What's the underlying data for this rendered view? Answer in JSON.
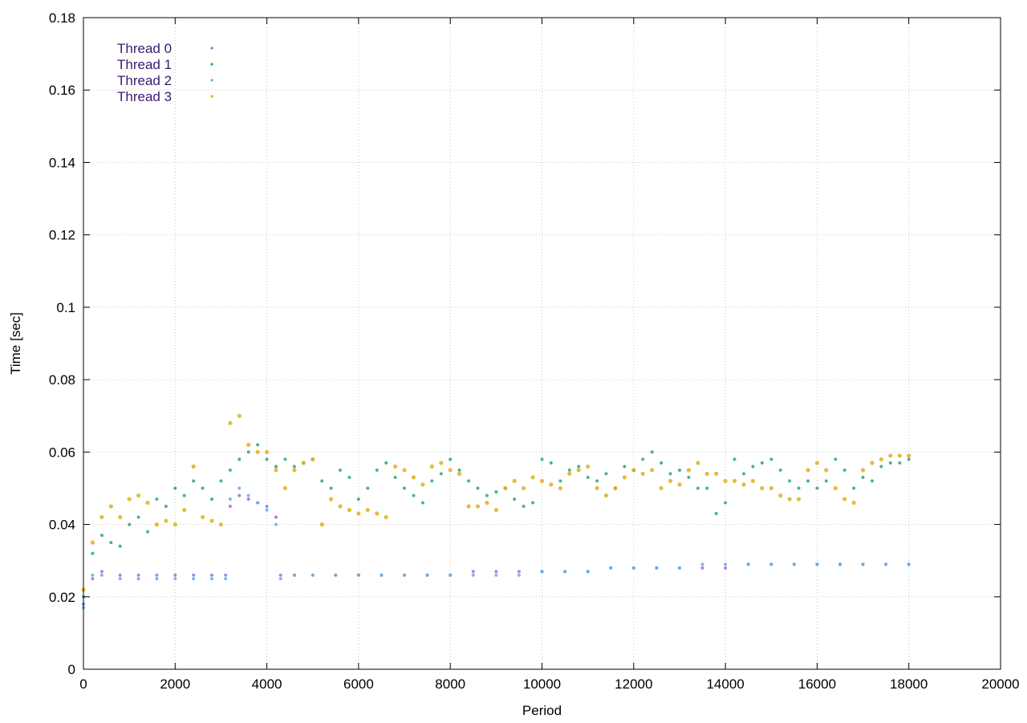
{
  "chart_data": {
    "type": "scatter",
    "xlabel": "Period",
    "ylabel": "Time [sec]",
    "xlim": [
      0,
      20000
    ],
    "ylim": [
      0,
      0.18
    ],
    "xticks": [
      0,
      2000,
      4000,
      6000,
      8000,
      10000,
      12000,
      14000,
      16000,
      18000,
      20000
    ],
    "yticks": [
      0,
      0.02,
      0.04,
      0.06,
      0.08,
      0.1,
      0.12,
      0.14,
      0.16,
      0.18
    ],
    "xtick_labels": [
      "0",
      "2000",
      "4000",
      "6000",
      "8000",
      "10000",
      "12000",
      "14000",
      "16000",
      "18000",
      "20000"
    ],
    "ytick_labels": [
      "0",
      "0.02",
      "0.04",
      "0.06",
      "0.08",
      "0.1",
      "0.12",
      "0.14",
      "0.16",
      "0.18"
    ],
    "grid": true,
    "legend_position": "top-left",
    "legend_text_color": "#3b1a6e",
    "series": [
      {
        "name": "Thread 0",
        "color": "#9b6fe0",
        "x": [
          0,
          200,
          400,
          800,
          1200,
          1600,
          2000,
          2400,
          2800,
          3100,
          3200,
          3400,
          3600,
          3800,
          4000,
          4200,
          4300,
          4600,
          5000,
          5500,
          6000,
          6500,
          7000,
          7500,
          8000,
          8500,
          9000,
          9500,
          10000,
          10500,
          11000,
          11500,
          12000,
          12500,
          13000,
          13500,
          14000,
          14500,
          15000,
          15500,
          16000,
          16500,
          17000,
          17500,
          18000
        ],
        "y": [
          0.018,
          0.025,
          0.027,
          0.026,
          0.026,
          0.026,
          0.026,
          0.026,
          0.026,
          0.026,
          0.045,
          0.048,
          0.047,
          0.046,
          0.045,
          0.042,
          0.026,
          0.026,
          0.026,
          0.026,
          0.026,
          0.026,
          0.026,
          0.026,
          0.026,
          0.027,
          0.027,
          0.027,
          0.027,
          0.027,
          0.027,
          0.028,
          0.028,
          0.028,
          0.028,
          0.028,
          0.028,
          0.029,
          0.029,
          0.029,
          0.029,
          0.029,
          0.029,
          0.029,
          0.029
        ]
      },
      {
        "name": "Thread 1",
        "color": "#2aa37f",
        "x": [
          0,
          200,
          400,
          600,
          800,
          1000,
          1200,
          1400,
          1600,
          1800,
          2000,
          2200,
          2400,
          2600,
          2800,
          3000,
          3200,
          3400,
          3600,
          3800,
          4000,
          4200,
          4400,
          4600,
          4800,
          5000,
          5200,
          5400,
          5600,
          5800,
          6000,
          6200,
          6400,
          6600,
          6800,
          7000,
          7200,
          7400,
          7600,
          7800,
          8000,
          8200,
          8400,
          8600,
          8800,
          9000,
          9200,
          9400,
          9600,
          9800,
          10000,
          10200,
          10400,
          10600,
          10800,
          11000,
          11200,
          11400,
          11600,
          11800,
          12000,
          12200,
          12400,
          12600,
          12800,
          13000,
          13200,
          13400,
          13600,
          13800,
          14000,
          14200,
          14400,
          14600,
          14800,
          15000,
          15200,
          15400,
          15600,
          15800,
          16000,
          16200,
          16400,
          16600,
          16800,
          17000,
          17200,
          17400,
          17600,
          17800,
          18000
        ],
        "y": [
          0.02,
          0.032,
          0.037,
          0.035,
          0.034,
          0.04,
          0.042,
          0.038,
          0.047,
          0.045,
          0.05,
          0.048,
          0.052,
          0.05,
          0.047,
          0.052,
          0.055,
          0.058,
          0.06,
          0.062,
          0.058,
          0.056,
          0.058,
          0.056,
          0.057,
          0.058,
          0.052,
          0.05,
          0.055,
          0.053,
          0.047,
          0.05,
          0.055,
          0.057,
          0.053,
          0.05,
          0.048,
          0.046,
          0.052,
          0.054,
          0.058,
          0.055,
          0.052,
          0.05,
          0.048,
          0.049,
          0.05,
          0.047,
          0.045,
          0.046,
          0.058,
          0.057,
          0.052,
          0.055,
          0.056,
          0.053,
          0.052,
          0.054,
          0.05,
          0.056,
          0.055,
          0.058,
          0.06,
          0.057,
          0.054,
          0.055,
          0.053,
          0.05,
          0.05,
          0.043,
          0.046,
          0.058,
          0.054,
          0.056,
          0.057,
          0.058,
          0.055,
          0.052,
          0.05,
          0.052,
          0.05,
          0.052,
          0.058,
          0.055,
          0.05,
          0.053,
          0.052,
          0.056,
          0.057,
          0.057,
          0.058
        ]
      },
      {
        "name": "Thread 2",
        "color": "#56b4e9",
        "x": [
          0,
          200,
          400,
          800,
          1200,
          1600,
          2000,
          2400,
          2800,
          3100,
          3200,
          3400,
          3600,
          3800,
          4000,
          4200,
          4300,
          4600,
          5000,
          5500,
          6000,
          6500,
          7000,
          7500,
          8000,
          8500,
          9000,
          9500,
          10000,
          10500,
          11000,
          11500,
          12000,
          12500,
          13000,
          13500,
          14000,
          14500,
          15000,
          15500,
          16000,
          16500,
          17000,
          17500,
          18000
        ],
        "y": [
          0.017,
          0.026,
          0.026,
          0.025,
          0.025,
          0.025,
          0.025,
          0.025,
          0.025,
          0.025,
          0.047,
          0.05,
          0.048,
          0.046,
          0.044,
          0.04,
          0.025,
          0.026,
          0.026,
          0.026,
          0.026,
          0.026,
          0.026,
          0.026,
          0.026,
          0.026,
          0.026,
          0.026,
          0.027,
          0.027,
          0.027,
          0.028,
          0.028,
          0.028,
          0.028,
          0.029,
          0.029,
          0.029,
          0.029,
          0.029,
          0.029,
          0.029,
          0.029,
          0.029,
          0.029
        ]
      },
      {
        "name": "Thread 3",
        "color": "#e0b020",
        "x": [
          0,
          200,
          400,
          600,
          800,
          1000,
          1200,
          1400,
          1600,
          1800,
          2000,
          2200,
          2400,
          2600,
          2800,
          3000,
          3200,
          3400,
          3600,
          3800,
          4000,
          4200,
          4400,
          4600,
          4800,
          5000,
          5200,
          5400,
          5600,
          5800,
          6000,
          6200,
          6400,
          6600,
          6800,
          7000,
          7200,
          7400,
          7600,
          7800,
          8000,
          8200,
          8400,
          8600,
          8800,
          9000,
          9200,
          9400,
          9600,
          9800,
          10000,
          10200,
          10400,
          10600,
          10800,
          11000,
          11200,
          11400,
          11600,
          11800,
          12000,
          12200,
          12400,
          12600,
          12800,
          13000,
          13200,
          13400,
          13600,
          13800,
          14000,
          14200,
          14400,
          14600,
          14800,
          15000,
          15200,
          15400,
          15600,
          15800,
          16000,
          16200,
          16400,
          16600,
          16800,
          17000,
          17200,
          17400,
          17600,
          17800,
          18000
        ],
        "y": [
          0.022,
          0.035,
          0.042,
          0.045,
          0.042,
          0.047,
          0.048,
          0.046,
          0.04,
          0.041,
          0.04,
          0.044,
          0.056,
          0.042,
          0.041,
          0.04,
          0.068,
          0.07,
          0.062,
          0.06,
          0.06,
          0.055,
          0.05,
          0.055,
          0.057,
          0.058,
          0.04,
          0.047,
          0.045,
          0.044,
          0.043,
          0.044,
          0.043,
          0.042,
          0.056,
          0.055,
          0.053,
          0.051,
          0.056,
          0.057,
          0.055,
          0.054,
          0.045,
          0.045,
          0.046,
          0.044,
          0.05,
          0.052,
          0.05,
          0.053,
          0.052,
          0.051,
          0.05,
          0.054,
          0.055,
          0.056,
          0.05,
          0.048,
          0.05,
          0.053,
          0.055,
          0.054,
          0.055,
          0.05,
          0.052,
          0.051,
          0.055,
          0.057,
          0.054,
          0.054,
          0.052,
          0.052,
          0.051,
          0.052,
          0.05,
          0.05,
          0.048,
          0.047,
          0.047,
          0.055,
          0.057,
          0.055,
          0.05,
          0.047,
          0.046,
          0.055,
          0.057,
          0.058,
          0.059,
          0.059,
          0.059
        ]
      }
    ]
  }
}
